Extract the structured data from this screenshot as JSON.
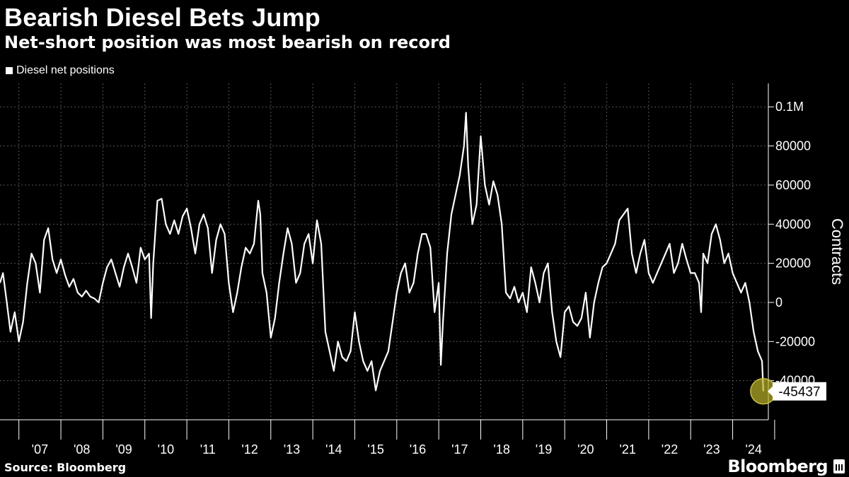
{
  "header": {
    "title": "Bearish Diesel Bets Jump",
    "subtitle": "Net-short position was most bearish on record"
  },
  "footer": {
    "source": "Source: Bloomberg",
    "brand": "Bloomberg"
  },
  "chart_data": {
    "type": "line",
    "title": "Bearish Diesel Bets Jump",
    "subtitle": "Net-short position was most bearish on record",
    "ylabel": "Contracts",
    "xlabel": "",
    "xlim": [
      2006.55,
      2024.85
    ],
    "ylim": [
      -60000,
      112000
    ],
    "x_ticks": [
      "'07",
      "'08",
      "'09",
      "'10",
      "'11",
      "'12",
      "'13",
      "'14",
      "'15",
      "'16",
      "'17",
      "'18",
      "'19",
      "'20",
      "'21",
      "'22",
      "'23",
      "'24"
    ],
    "y_ticks": [
      {
        "value": 100000,
        "label": "0.1M"
      },
      {
        "value": 80000,
        "label": "80000"
      },
      {
        "value": 60000,
        "label": "60000"
      },
      {
        "value": 40000,
        "label": "40000"
      },
      {
        "value": 20000,
        "label": "20000"
      },
      {
        "value": 0,
        "label": "0"
      },
      {
        "value": -20000,
        "label": "-20000"
      },
      {
        "value": -40000,
        "label": "-40000"
      }
    ],
    "grid": true,
    "legend_position": "top-left",
    "annotation": {
      "x": 2024.73,
      "y": -45437,
      "label": "-45437"
    },
    "series": [
      {
        "name": "Diesel net positions",
        "color": "#ffffff",
        "points": [
          [
            2006.55,
            10000
          ],
          [
            2006.62,
            15000
          ],
          [
            2006.7,
            2000
          ],
          [
            2006.8,
            -15000
          ],
          [
            2006.9,
            -5000
          ],
          [
            2007.0,
            -20000
          ],
          [
            2007.1,
            -10000
          ],
          [
            2007.2,
            10000
          ],
          [
            2007.3,
            25000
          ],
          [
            2007.4,
            20000
          ],
          [
            2007.5,
            5000
          ],
          [
            2007.6,
            32000
          ],
          [
            2007.7,
            38000
          ],
          [
            2007.8,
            22000
          ],
          [
            2007.9,
            15000
          ],
          [
            2008.0,
            22000
          ],
          [
            2008.1,
            14000
          ],
          [
            2008.2,
            8000
          ],
          [
            2008.3,
            12000
          ],
          [
            2008.4,
            5000
          ],
          [
            2008.5,
            3000
          ],
          [
            2008.6,
            6000
          ],
          [
            2008.7,
            3000
          ],
          [
            2008.8,
            2000
          ],
          [
            2008.9,
            0
          ],
          [
            2009.0,
            10000
          ],
          [
            2009.1,
            18000
          ],
          [
            2009.2,
            22000
          ],
          [
            2009.3,
            15000
          ],
          [
            2009.4,
            8000
          ],
          [
            2009.5,
            18000
          ],
          [
            2009.6,
            25000
          ],
          [
            2009.7,
            18000
          ],
          [
            2009.8,
            10000
          ],
          [
            2009.9,
            28000
          ],
          [
            2010.0,
            22000
          ],
          [
            2010.1,
            25000
          ],
          [
            2010.15,
            -8000
          ],
          [
            2010.2,
            20000
          ],
          [
            2010.3,
            52000
          ],
          [
            2010.4,
            53000
          ],
          [
            2010.5,
            40000
          ],
          [
            2010.6,
            35000
          ],
          [
            2010.7,
            42000
          ],
          [
            2010.8,
            35000
          ],
          [
            2010.9,
            44000
          ],
          [
            2011.0,
            48000
          ],
          [
            2011.1,
            38000
          ],
          [
            2011.2,
            25000
          ],
          [
            2011.3,
            40000
          ],
          [
            2011.4,
            45000
          ],
          [
            2011.5,
            38000
          ],
          [
            2011.6,
            15000
          ],
          [
            2011.7,
            32000
          ],
          [
            2011.8,
            40000
          ],
          [
            2011.9,
            35000
          ],
          [
            2012.0,
            10000
          ],
          [
            2012.1,
            -5000
          ],
          [
            2012.2,
            5000
          ],
          [
            2012.3,
            18000
          ],
          [
            2012.4,
            28000
          ],
          [
            2012.5,
            25000
          ],
          [
            2012.6,
            30000
          ],
          [
            2012.7,
            52000
          ],
          [
            2012.75,
            45000
          ],
          [
            2012.8,
            15000
          ],
          [
            2012.9,
            5000
          ],
          [
            2013.0,
            -18000
          ],
          [
            2013.1,
            -8000
          ],
          [
            2013.2,
            10000
          ],
          [
            2013.3,
            25000
          ],
          [
            2013.4,
            38000
          ],
          [
            2013.5,
            30000
          ],
          [
            2013.6,
            10000
          ],
          [
            2013.7,
            15000
          ],
          [
            2013.8,
            30000
          ],
          [
            2013.9,
            35000
          ],
          [
            2014.0,
            20000
          ],
          [
            2014.1,
            42000
          ],
          [
            2014.2,
            30000
          ],
          [
            2014.3,
            -15000
          ],
          [
            2014.4,
            -25000
          ],
          [
            2014.5,
            -35000
          ],
          [
            2014.6,
            -20000
          ],
          [
            2014.7,
            -28000
          ],
          [
            2014.8,
            -30000
          ],
          [
            2014.9,
            -25000
          ],
          [
            2015.0,
            -5000
          ],
          [
            2015.1,
            -20000
          ],
          [
            2015.2,
            -30000
          ],
          [
            2015.3,
            -35000
          ],
          [
            2015.4,
            -30000
          ],
          [
            2015.5,
            -45000
          ],
          [
            2015.6,
            -35000
          ],
          [
            2015.7,
            -30000
          ],
          [
            2015.8,
            -25000
          ],
          [
            2015.9,
            -10000
          ],
          [
            2016.0,
            5000
          ],
          [
            2016.1,
            15000
          ],
          [
            2016.2,
            20000
          ],
          [
            2016.3,
            5000
          ],
          [
            2016.4,
            10000
          ],
          [
            2016.5,
            25000
          ],
          [
            2016.6,
            35000
          ],
          [
            2016.7,
            35000
          ],
          [
            2016.8,
            28000
          ],
          [
            2016.9,
            -5000
          ],
          [
            2017.0,
            10000
          ],
          [
            2017.05,
            -32000
          ],
          [
            2017.1,
            -10000
          ],
          [
            2017.2,
            25000
          ],
          [
            2017.3,
            45000
          ],
          [
            2017.4,
            55000
          ],
          [
            2017.5,
            65000
          ],
          [
            2017.6,
            80000
          ],
          [
            2017.65,
            97000
          ],
          [
            2017.7,
            70000
          ],
          [
            2017.8,
            40000
          ],
          [
            2017.9,
            50000
          ],
          [
            2018.0,
            85000
          ],
          [
            2018.1,
            60000
          ],
          [
            2018.2,
            50000
          ],
          [
            2018.3,
            62000
          ],
          [
            2018.4,
            55000
          ],
          [
            2018.5,
            40000
          ],
          [
            2018.6,
            5000
          ],
          [
            2018.7,
            2000
          ],
          [
            2018.8,
            8000
          ],
          [
            2018.9,
            0
          ],
          [
            2019.0,
            5000
          ],
          [
            2019.1,
            -5000
          ],
          [
            2019.2,
            18000
          ],
          [
            2019.3,
            10000
          ],
          [
            2019.4,
            0
          ],
          [
            2019.5,
            15000
          ],
          [
            2019.6,
            20000
          ],
          [
            2019.7,
            -5000
          ],
          [
            2019.8,
            -20000
          ],
          [
            2019.9,
            -28000
          ],
          [
            2020.0,
            -5000
          ],
          [
            2020.1,
            -2000
          ],
          [
            2020.2,
            -10000
          ],
          [
            2020.3,
            -12000
          ],
          [
            2020.4,
            -8000
          ],
          [
            2020.5,
            5000
          ],
          [
            2020.6,
            -18000
          ],
          [
            2020.7,
            0
          ],
          [
            2020.8,
            10000
          ],
          [
            2020.9,
            18000
          ],
          [
            2021.0,
            20000
          ],
          [
            2021.1,
            25000
          ],
          [
            2021.2,
            30000
          ],
          [
            2021.3,
            42000
          ],
          [
            2021.4,
            45000
          ],
          [
            2021.5,
            48000
          ],
          [
            2021.6,
            25000
          ],
          [
            2021.7,
            15000
          ],
          [
            2021.8,
            25000
          ],
          [
            2021.9,
            32000
          ],
          [
            2022.0,
            15000
          ],
          [
            2022.1,
            10000
          ],
          [
            2022.2,
            15000
          ],
          [
            2022.3,
            20000
          ],
          [
            2022.4,
            25000
          ],
          [
            2022.5,
            30000
          ],
          [
            2022.6,
            15000
          ],
          [
            2022.7,
            20000
          ],
          [
            2022.8,
            30000
          ],
          [
            2022.9,
            22000
          ],
          [
            2023.0,
            15000
          ],
          [
            2023.1,
            15000
          ],
          [
            2023.2,
            10000
          ],
          [
            2023.25,
            -5000
          ],
          [
            2023.3,
            25000
          ],
          [
            2023.4,
            20000
          ],
          [
            2023.5,
            35000
          ],
          [
            2023.6,
            40000
          ],
          [
            2023.7,
            32000
          ],
          [
            2023.8,
            20000
          ],
          [
            2023.9,
            25000
          ],
          [
            2024.0,
            15000
          ],
          [
            2024.1,
            10000
          ],
          [
            2024.2,
            5000
          ],
          [
            2024.3,
            10000
          ],
          [
            2024.4,
            0
          ],
          [
            2024.5,
            -15000
          ],
          [
            2024.6,
            -25000
          ],
          [
            2024.7,
            -30000
          ],
          [
            2024.73,
            -45437
          ]
        ]
      }
    ]
  }
}
